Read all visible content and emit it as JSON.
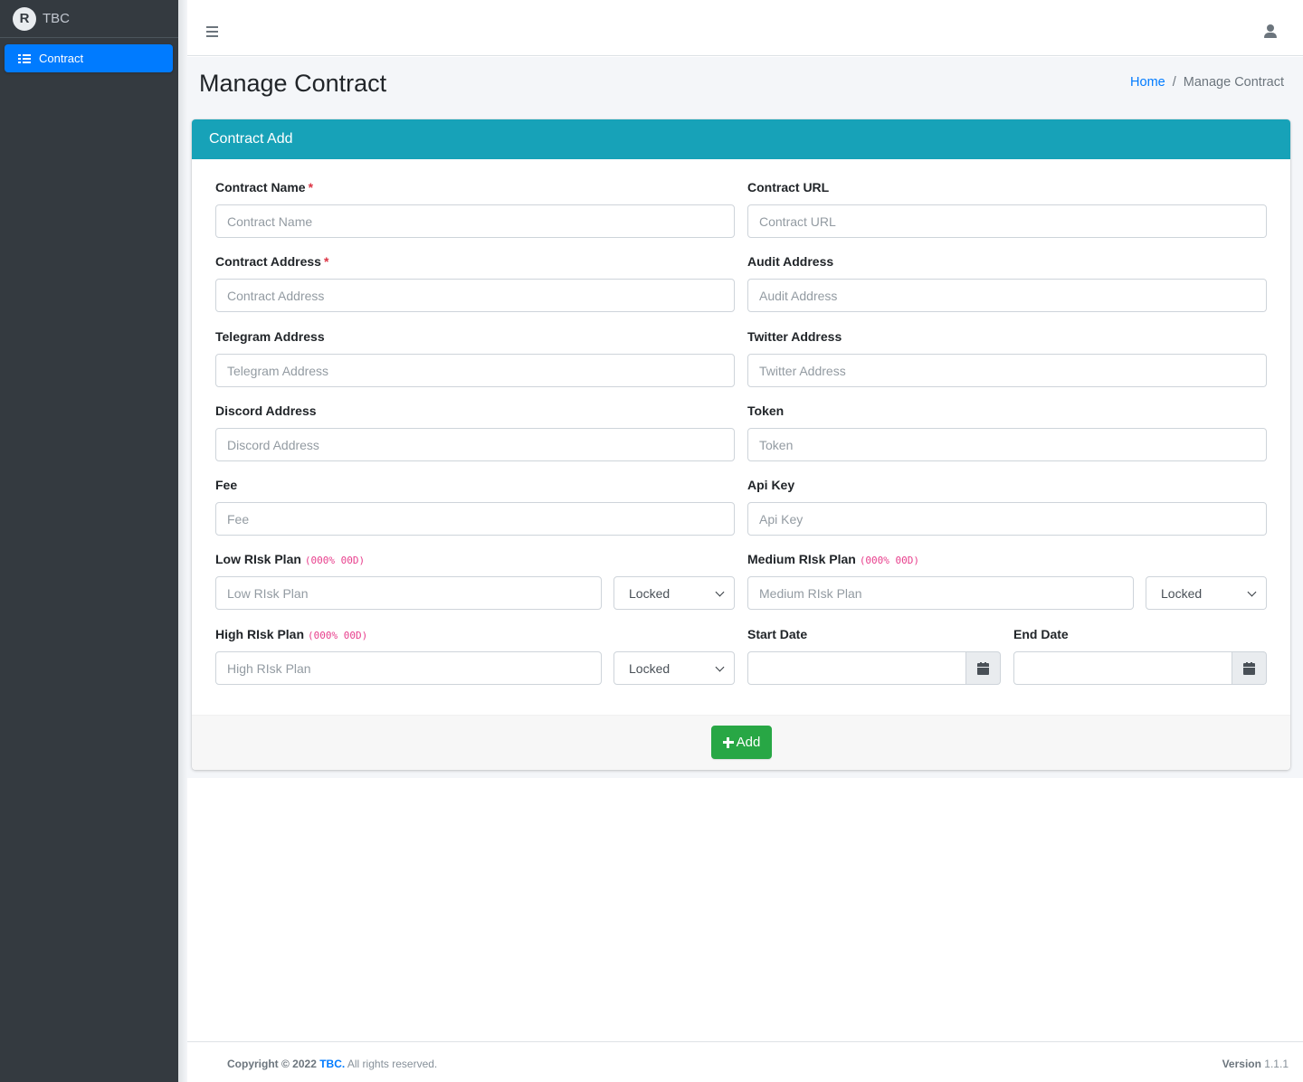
{
  "brand": {
    "name": "TBC",
    "logo_letter": "R"
  },
  "sidebar": {
    "items": [
      {
        "label": "Contract",
        "icon": "list-icon",
        "active": true
      }
    ]
  },
  "page": {
    "title": "Manage Contract"
  },
  "breadcrumb": {
    "home": "Home",
    "separator": "/",
    "current": "Manage Contract"
  },
  "card": {
    "title": "Contract Add"
  },
  "form": {
    "contract_name": {
      "label": "Contract Name",
      "required": "*",
      "placeholder": "Contract Name"
    },
    "contract_url": {
      "label": "Contract URL",
      "placeholder": "Contract URL"
    },
    "contract_address": {
      "label": "Contract Address",
      "required": "*",
      "placeholder": "Contract Address"
    },
    "audit_address": {
      "label": "Audit Address",
      "placeholder": "Audit Address"
    },
    "telegram_address": {
      "label": "Telegram Address",
      "placeholder": "Telegram Address"
    },
    "twitter_address": {
      "label": "Twitter Address",
      "placeholder": "Twitter Address"
    },
    "discord_address": {
      "label": "Discord Address",
      "placeholder": "Discord Address"
    },
    "token": {
      "label": "Token",
      "placeholder": "Token"
    },
    "fee": {
      "label": "Fee",
      "placeholder": "Fee"
    },
    "api_key": {
      "label": "Api Key",
      "placeholder": "Api Key"
    },
    "low_risk_plan": {
      "label": "Low RIsk Plan",
      "hint": "(000% 00D)",
      "placeholder": "Low RIsk Plan",
      "select_value": "Locked"
    },
    "medium_risk_plan": {
      "label": "Medium RIsk Plan",
      "hint": "(000% 00D)",
      "placeholder": "Medium RIsk Plan",
      "select_value": "Locked"
    },
    "high_risk_plan": {
      "label": "High RIsk Plan",
      "hint": "(000% 00D)",
      "placeholder": "High RIsk Plan",
      "select_value": "Locked"
    },
    "start_date": {
      "label": "Start Date",
      "value": ""
    },
    "end_date": {
      "label": "End Date",
      "value": ""
    },
    "add_button": "Add"
  },
  "footer": {
    "copyright": "Copyright © 2022",
    "brand_link": "TBC.",
    "rights": "All rights reserved.",
    "version_label": "Version",
    "version": "1.1.1"
  },
  "colors": {
    "sidebar_bg": "#343a40",
    "active_nav": "#007bff",
    "card_header": "#17a2b8",
    "add_button": "#28a745",
    "required": "#dc3545",
    "hint": "#e83e8c"
  }
}
